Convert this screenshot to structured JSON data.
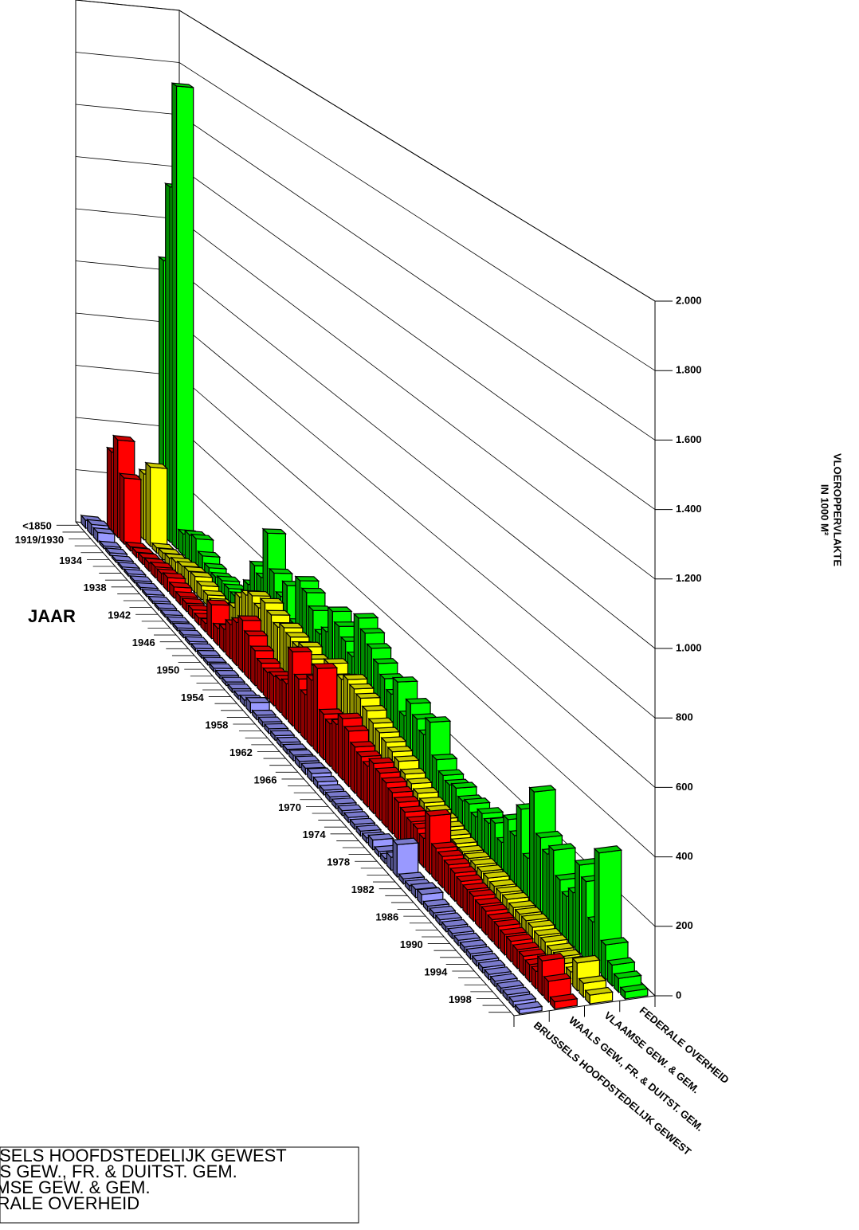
{
  "chart_data": {
    "type": "bar3d",
    "x_label": "JAAR",
    "y_label": [
      "VLOEROPPERVLAKTE",
      "IN 1000 M²"
    ],
    "categories": [
      "<1850",
      null,
      "1919/1930",
      null,
      null,
      "1934",
      null,
      null,
      null,
      "1938",
      null,
      null,
      null,
      "1942",
      null,
      null,
      null,
      "1946",
      null,
      null,
      null,
      "1950",
      null,
      null,
      null,
      "1954",
      null,
      null,
      null,
      "1958",
      null,
      null,
      null,
      "1962",
      null,
      null,
      null,
      "1966",
      null,
      null,
      null,
      "1970",
      null,
      null,
      null,
      "1974",
      null,
      null,
      null,
      "1978",
      null,
      null,
      null,
      "1982",
      null,
      null,
      null,
      "1986",
      null,
      null,
      null,
      "1990",
      null,
      null,
      null,
      "1994",
      null,
      null,
      null,
      "1998",
      null,
      null
    ],
    "series": [
      {
        "name": "BRUSSELS HOOFDSTEDELIJK GEWEST",
        "color": "#9999ff",
        "values": [
          30,
          40,
          35,
          10,
          10,
          8,
          8,
          8,
          8,
          8,
          8,
          8,
          8,
          8,
          8,
          10,
          10,
          10,
          10,
          10,
          10,
          12,
          12,
          12,
          12,
          12,
          20,
          35,
          15,
          15,
          15,
          15,
          15,
          15,
          18,
          20,
          20,
          25,
          20,
          15,
          15,
          15,
          15,
          15,
          15,
          15,
          15,
          30,
          15,
          15,
          40,
          100,
          15,
          15,
          25,
          30,
          15,
          15,
          15,
          15,
          15,
          15,
          15,
          15,
          15,
          15,
          15,
          15,
          15,
          15,
          15,
          12
        ]
      },
      {
        "name": "WAALS GEW., FR. & DUITST. GEM.",
        "color": "#ff0000",
        "values": [
          300,
          370,
          250,
          15,
          20,
          25,
          30,
          40,
          40,
          50,
          40,
          30,
          30,
          30,
          25,
          30,
          120,
          60,
          80,
          120,
          150,
          180,
          150,
          120,
          100,
          90,
          100,
          110,
          120,
          250,
          180,
          150,
          220,
          280,
          150,
          140,
          160,
          200,
          180,
          150,
          140,
          130,
          160,
          150,
          140,
          130,
          120,
          110,
          100,
          100,
          90,
          180,
          100,
          95,
          90,
          85,
          80,
          75,
          75,
          70,
          70,
          65,
          65,
          60,
          60,
          55,
          55,
          50,
          50,
          100,
          60,
          20
        ]
      },
      {
        "name": "VLAAMSE GEW. & GEM.",
        "color": "#ffff00",
        "values": [
          150,
          250,
          300,
          20,
          25,
          30,
          40,
          50,
          55,
          60,
          50,
          40,
          35,
          30,
          40,
          90,
          150,
          180,
          200,
          180,
          220,
          200,
          180,
          200,
          190,
          180,
          200,
          180,
          170,
          190,
          230,
          200,
          220,
          240,
          230,
          220,
          200,
          180,
          170,
          160,
          150,
          140,
          120,
          110,
          100,
          90,
          85,
          80,
          75,
          70,
          65,
          60,
          60,
          60,
          60,
          60,
          55,
          55,
          55,
          50,
          50,
          50,
          50,
          45,
          45,
          40,
          40,
          40,
          35,
          80,
          40,
          25
        ]
      },
      {
        "name": "FEDERALE OVERHEID",
        "color": "#00ff00",
        "values": [
          1050,
          1350,
          1750,
          80,
          100,
          110,
          70,
          50,
          40,
          50,
          45,
          40,
          45,
          130,
          220,
          200,
          380,
          260,
          200,
          260,
          150,
          320,
          300,
          260,
          200,
          230,
          320,
          290,
          260,
          230,
          380,
          350,
          320,
          290,
          260,
          230,
          290,
          200,
          260,
          230,
          200,
          260,
          160,
          130,
          120,
          130,
          110,
          120,
          100,
          130,
          120,
          140,
          100,
          190,
          160,
          260,
          130,
          350,
          230,
          200,
          230,
          160,
          130,
          160,
          260,
          230,
          130,
          350,
          100,
          60,
          40,
          20
        ]
      }
    ],
    "ylim": [
      0,
      2000
    ],
    "yticks": [
      0,
      200,
      400,
      600,
      800,
      {
        "value": 1000,
        "label": "1.000"
      },
      {
        "value": 1200,
        "label": "1.200"
      },
      {
        "value": 1400,
        "label": "1.400"
      },
      {
        "value": 1600,
        "label": "1.600"
      },
      {
        "value": 1800,
        "label": "1.800"
      },
      {
        "value": 2000,
        "label": "2.000"
      }
    ],
    "grid": true,
    "legend": "bottom-left"
  }
}
